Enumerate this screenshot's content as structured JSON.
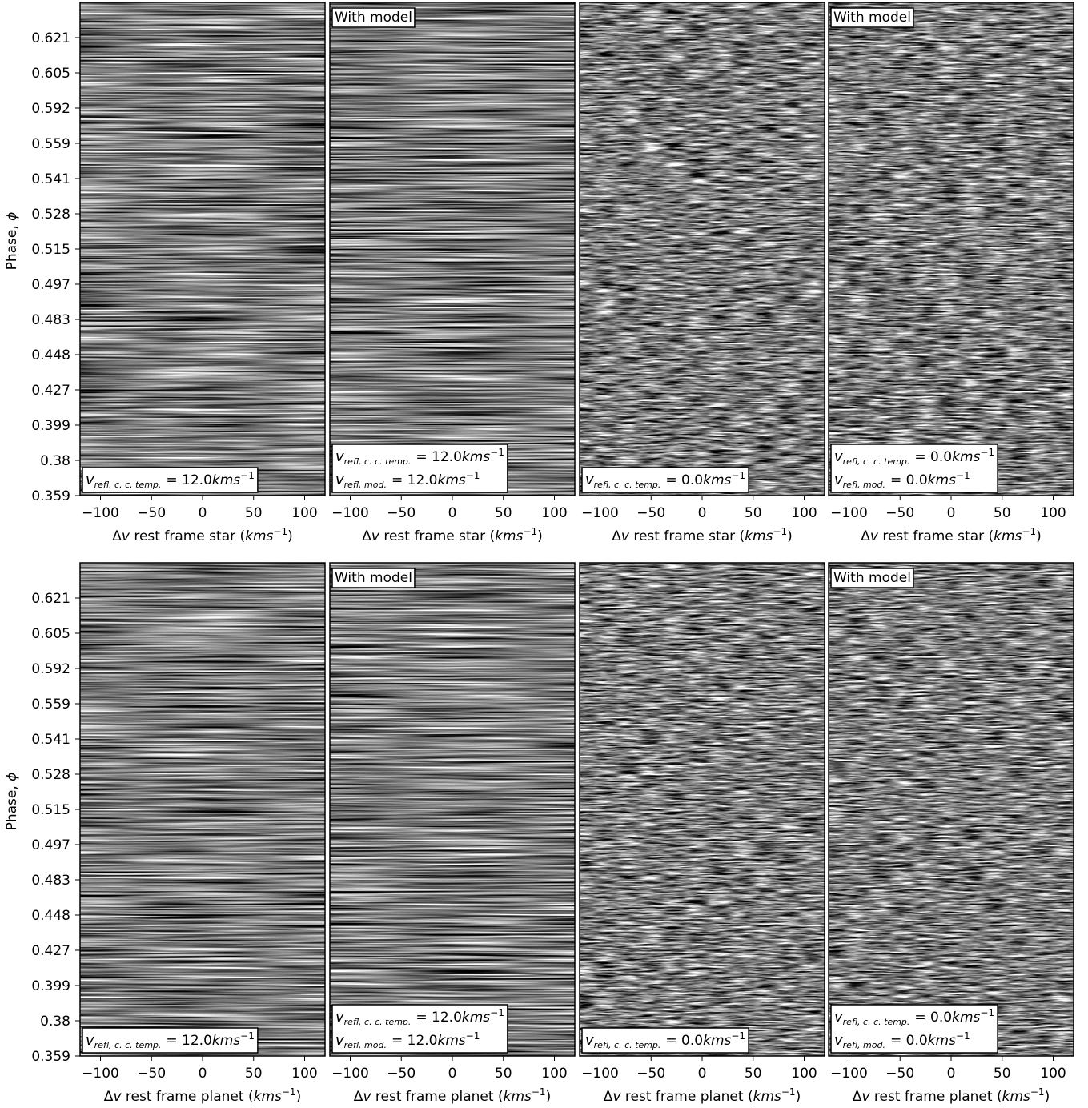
{
  "chart_data": [
    {
      "type": "heatmap",
      "xlabel": [
        "Δ",
        "v",
        " rest frame star (",
        "kms",
        "−1",
        ")"
      ],
      "ylabel": [
        "Phase, ",
        "ϕ"
      ],
      "xlim": [
        -120,
        120
      ],
      "xticks": [
        {
          "value": -100,
          "label": "−100"
        },
        {
          "value": -50,
          "label": "−50"
        },
        0,
        50,
        100
      ],
      "ycategories": [
        "0.359",
        "0.38",
        "0.399",
        "0.427",
        "0.448",
        "0.483",
        "0.497",
        "0.515",
        "0.528",
        "0.541",
        "0.559",
        "0.592",
        "0.605",
        "0.621",
        null
      ],
      "legend": [
        {
          "symbol": "v",
          "subscript": "refl, c. c. temp.",
          "equals": "= 12.0",
          "unit": "kms",
          "exponent": "−1"
        }
      ]
    },
    {
      "type": "heatmap",
      "xlabel": [
        "Δ",
        "v",
        " rest frame star (",
        "kms",
        "−1",
        ")"
      ],
      "xlim": [
        -120,
        120
      ],
      "xticks": [
        {
          "value": -100,
          "label": "−100"
        },
        {
          "value": -50,
          "label": "−50"
        },
        0,
        50,
        100
      ],
      "annotation": "With model",
      "legend": [
        {
          "symbol": "v",
          "subscript": "refl, c. c. temp.",
          "equals": "= 12.0",
          "unit": "kms",
          "exponent": "−1"
        },
        {
          "symbol": "v",
          "subscript": "refl, mod.",
          "equals": "= 12.0",
          "unit": "kms",
          "exponent": "−1"
        }
      ]
    },
    {
      "type": "heatmap",
      "xlabel": [
        "Δ",
        "v",
        " rest frame star (",
        "kms",
        "−1",
        ")"
      ],
      "xlim": [
        -120,
        120
      ],
      "xticks": [
        {
          "value": -100,
          "label": "−100"
        },
        {
          "value": -50,
          "label": "−50"
        },
        0,
        50,
        100
      ],
      "legend": [
        {
          "symbol": "v",
          "subscript": "refl, c. c. temp.",
          "equals": "= 0.0",
          "unit": "kms",
          "exponent": "−1"
        }
      ]
    },
    {
      "type": "heatmap",
      "xlabel": [
        "Δ",
        "v",
        " rest frame star (",
        "kms",
        "−1",
        ")"
      ],
      "xlim": [
        -120,
        120
      ],
      "xticks": [
        {
          "value": -100,
          "label": "−100"
        },
        {
          "value": -50,
          "label": "−50"
        },
        0,
        50,
        100
      ],
      "annotation": "With model",
      "legend": [
        {
          "symbol": "v",
          "subscript": "refl, c. c. temp.",
          "equals": "= 0.0",
          "unit": "kms",
          "exponent": "−1"
        },
        {
          "symbol": "v",
          "subscript": "refl, mod.",
          "equals": "= 0.0",
          "unit": "kms",
          "exponent": "−1"
        }
      ]
    },
    {
      "type": "heatmap",
      "xlabel": [
        "Δ",
        "v",
        " rest frame planet (",
        "kms",
        "−1",
        ")"
      ],
      "ylabel": [
        "Phase, ",
        "ϕ"
      ],
      "xlim": [
        -120,
        120
      ],
      "xticks": [
        {
          "value": -100,
          "label": "−100"
        },
        {
          "value": -50,
          "label": "−50"
        },
        0,
        50,
        100
      ],
      "ycategories": [
        "0.359",
        "0.38",
        "0.399",
        "0.427",
        "0.448",
        "0.483",
        "0.497",
        "0.515",
        "0.528",
        "0.541",
        "0.559",
        "0.592",
        "0.605",
        "0.621",
        null
      ],
      "legend": [
        {
          "symbol": "v",
          "subscript": "refl, c. c. temp.",
          "equals": "= 12.0",
          "unit": "kms",
          "exponent": "−1"
        }
      ]
    },
    {
      "type": "heatmap",
      "xlabel": [
        "Δ",
        "v",
        " rest frame planet (",
        "kms",
        "−1",
        ")"
      ],
      "xlim": [
        -120,
        120
      ],
      "xticks": [
        {
          "value": -100,
          "label": "−100"
        },
        {
          "value": -50,
          "label": "−50"
        },
        0,
        50,
        100
      ],
      "annotation": "With model",
      "legend": [
        {
          "symbol": "v",
          "subscript": "refl, c. c. temp.",
          "equals": "= 12.0",
          "unit": "kms",
          "exponent": "−1"
        },
        {
          "symbol": "v",
          "subscript": "refl, mod.",
          "equals": "= 12.0",
          "unit": "kms",
          "exponent": "−1"
        }
      ]
    },
    {
      "type": "heatmap",
      "xlabel": [
        "Δ",
        "v",
        " rest frame planet (",
        "kms",
        "−1",
        ")"
      ],
      "xlim": [
        -120,
        120
      ],
      "xticks": [
        {
          "value": -100,
          "label": "−100"
        },
        {
          "value": -50,
          "label": "−50"
        },
        0,
        50,
        100
      ],
      "legend": [
        {
          "symbol": "v",
          "subscript": "refl, c. c. temp.",
          "equals": "= 0.0",
          "unit": "kms",
          "exponent": "−1"
        }
      ]
    },
    {
      "type": "heatmap",
      "xlabel": [
        "Δ",
        "v",
        " rest frame planet (",
        "kms",
        "−1",
        ")"
      ],
      "xlim": [
        -120,
        120
      ],
      "xticks": [
        {
          "value": -100,
          "label": "−100"
        },
        {
          "value": -50,
          "label": "−50"
        },
        0,
        50,
        100
      ],
      "annotation": "With model",
      "legend": [
        {
          "symbol": "v",
          "subscript": "refl, c. c. temp.",
          "equals": "= 0.0",
          "unit": "kms",
          "exponent": "−1"
        },
        {
          "symbol": "v",
          "subscript": "refl, mod.",
          "equals": "= 0.0",
          "unit": "kms",
          "exponent": "−1"
        }
      ]
    }
  ]
}
